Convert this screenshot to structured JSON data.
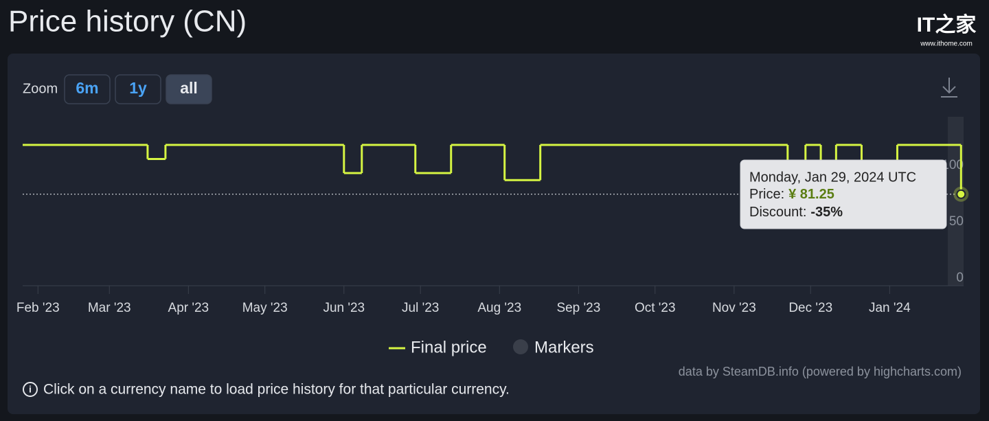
{
  "chart_data": {
    "type": "step-line",
    "title": "Price history (CN)",
    "zoom": {
      "label": "Zoom",
      "buttons": [
        "6m",
        "1y",
        "all"
      ]
    },
    "x": [
      "2023-01-26",
      "2023-03-16",
      "2023-03-23",
      "2023-06-01",
      "2023-06-08",
      "2023-06-29",
      "2023-07-13",
      "2023-08-03",
      "2023-08-17",
      "2023-11-22",
      "2023-11-29",
      "2023-12-05",
      "2023-12-11",
      "2023-12-21",
      "2024-01-04",
      "2024-01-29"
    ],
    "series": [
      {
        "name": "Final price",
        "color": "#d6f542",
        "values": [
          125,
          112.5,
          125,
          100,
          125,
          100,
          125,
          93.75,
          125,
          81.25,
          125,
          81.25,
          125,
          81.25,
          125,
          81.25
        ]
      },
      {
        "name": "Markers",
        "color": "#3a3f4a"
      }
    ],
    "xlim": [
      "2023-01-26",
      "2024-01-30"
    ],
    "xticks": [
      {
        "value": "2023-02-01",
        "label": "Feb '23"
      },
      {
        "value": "2023-03-01",
        "label": "Mar '23"
      },
      {
        "value": "2023-04-01",
        "label": "Apr '23"
      },
      {
        "value": "2023-05-01",
        "label": "May '23"
      },
      {
        "value": "2023-06-01",
        "label": "Jun '23"
      },
      {
        "value": "2023-07-01",
        "label": "Jul '23"
      },
      {
        "value": "2023-08-01",
        "label": "Aug '23"
      },
      {
        "value": "2023-09-01",
        "label": "Sep '23"
      },
      {
        "value": "2023-10-01",
        "label": "Oct '23"
      },
      {
        "value": "2023-11-01",
        "label": "Nov '23"
      },
      {
        "value": "2023-12-01",
        "label": "Dec '23"
      },
      {
        "value": "2024-01-01",
        "label": "Jan '24"
      }
    ],
    "ylim": [
      0,
      150
    ],
    "yticks": [
      0,
      50,
      100
    ],
    "grid": false,
    "tooltip": {
      "date": "Monday, Jan 29, 2024 UTC",
      "price_label": "Price:",
      "price": "¥ 81.25",
      "discount_label": "Discount:",
      "discount": "-35%"
    },
    "credit": "data by SteamDB.info (powered by highcharts.com)",
    "note": "Click on a currency name to load price history for that particular currency.",
    "watermark": {
      "logo": "IT之家",
      "url": "www.ithome.com"
    }
  }
}
